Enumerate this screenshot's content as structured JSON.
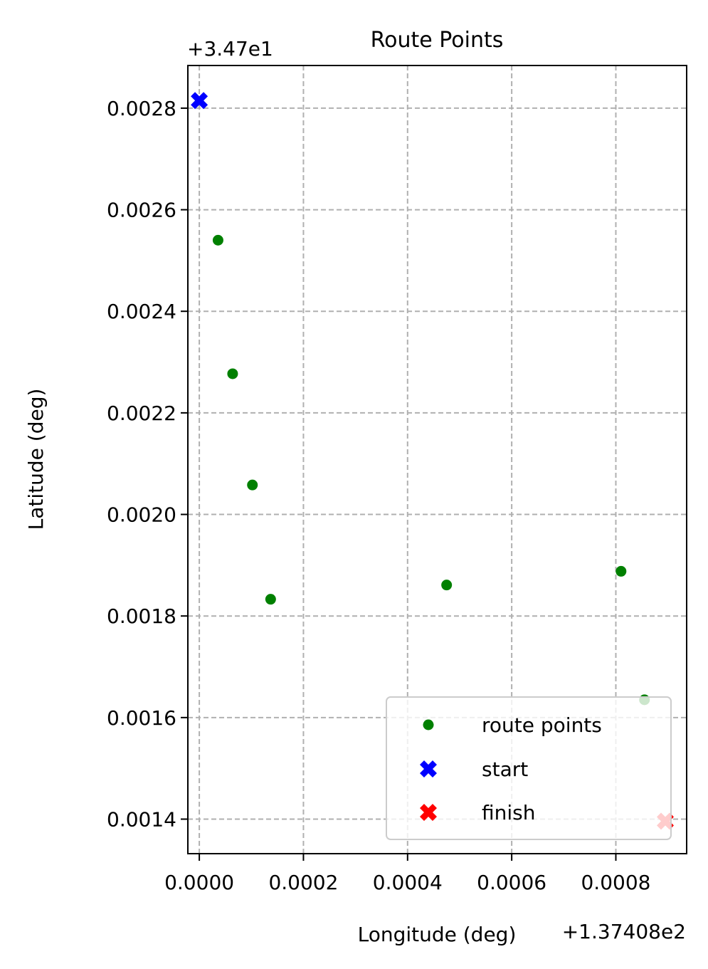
{
  "chart_data": {
    "type": "scatter",
    "title": "Route Points",
    "xlabel": "Longitude (deg)",
    "ylabel": "Latitude (deg)",
    "x_offset_label": "+1.37408e2",
    "y_offset_label": "+3.47e1",
    "xlim": [
      -2.2e-05,
      0.000936
    ],
    "ylim": [
      0.001332,
      0.002884
    ],
    "xticks": [
      0.0,
      0.0002,
      0.0004,
      0.0006,
      0.0008
    ],
    "xtick_labels": [
      "0.0000",
      "0.0002",
      "0.0004",
      "0.0006",
      "0.0008"
    ],
    "yticks": [
      0.0014,
      0.0016,
      0.0018,
      0.002,
      0.0022,
      0.0024,
      0.0026,
      0.0028
    ],
    "ytick_labels": [
      "0.0014",
      "0.0016",
      "0.0018",
      "0.0020",
      "0.0022",
      "0.0024",
      "0.0026",
      "0.0028"
    ],
    "grid": true,
    "legend_position": "lower-right",
    "series": [
      {
        "name": "route points",
        "marker": "circle",
        "color": "#008000",
        "points": [
          {
            "x": 3.6e-05,
            "y": 0.00254
          },
          {
            "x": 6.4e-05,
            "y": 0.002277
          },
          {
            "x": 0.000102,
            "y": 0.002058
          },
          {
            "x": 0.000137,
            "y": 0.001833
          },
          {
            "x": 0.000475,
            "y": 0.001861
          },
          {
            "x": 0.00081,
            "y": 0.001888
          },
          {
            "x": 0.000855,
            "y": 0.001635
          }
        ]
      },
      {
        "name": "start",
        "marker": "x-filled",
        "color": "#0000ff",
        "points": [
          {
            "x": 0.0,
            "y": 0.002815
          }
        ]
      },
      {
        "name": "finish",
        "marker": "x-filled",
        "color": "#ff0000",
        "points": [
          {
            "x": 0.000895,
            "y": 0.001396
          }
        ]
      }
    ]
  }
}
